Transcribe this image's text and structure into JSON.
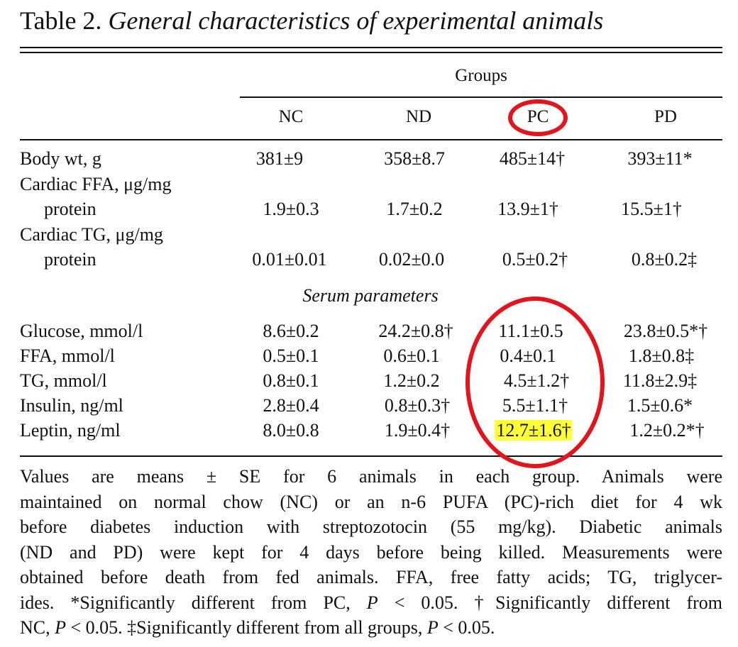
{
  "title": {
    "label": "Table 2.",
    "name": "General characteristics of experimental animals"
  },
  "table": {
    "groups_label": "Groups",
    "columns": [
      "NC",
      "ND",
      "PC",
      "PD"
    ],
    "rows": [
      {
        "label_line1": "Body wt, g",
        "label_line2": "",
        "values": [
          "381±9",
          "358±8.7",
          "485±14†",
          "393±11*"
        ]
      },
      {
        "label_line1": "Cardiac FFA, μg/mg",
        "label_line2": "protein",
        "values": [
          "1.9±0.3",
          "1.7±0.2",
          "13.9±1†",
          "15.5±1†"
        ]
      },
      {
        "label_line1": "Cardiac TG, μg/mg",
        "label_line2": "protein",
        "values": [
          "0.01±0.01",
          "0.02±0.0",
          "0.5±0.2†",
          "0.8±0.2‡"
        ]
      }
    ],
    "section_label": "Serum parameters",
    "serum_rows": [
      {
        "label": "Glucose, mmol/l",
        "values": [
          "8.6±0.2",
          "24.2±0.8†",
          "11.1±0.5",
          "23.8±0.5*†"
        ]
      },
      {
        "label": "FFA, mmol/l",
        "values": [
          "0.5±0.1",
          "0.6±0.1",
          "0.4±0.1",
          "1.8±0.8‡"
        ]
      },
      {
        "label": "TG, mmol/l",
        "values": [
          "0.8±0.1",
          "1.2±0.2",
          "4.5±1.2†",
          "11.8±2.9‡"
        ]
      },
      {
        "label": "Insulin, ng/ml",
        "values": [
          "2.8±0.4",
          "0.8±0.3†",
          "5.5±1.1†",
          "1.5±0.6*"
        ]
      },
      {
        "label": "Leptin, ng/ml",
        "values": [
          "8.0±0.8",
          "1.9±0.4†",
          "12.7±1.6†",
          "1.2±0.2*†"
        ]
      }
    ]
  },
  "note_lines": [
    "Values are means ± SE for 6 animals in each group. Animals were",
    "maintained on normal chow (NC) or an n-6 PUFA (PC)-rich diet for 4 wk",
    "before diabetes induction with streptozotocin (55 mg/kg). Diabetic animals",
    "(ND and PD) were kept for 4 days before being killed. Measurements were",
    "obtained before death from fed animals. FFA, free fatty acids; TG, triglycer-"
  ],
  "note_line6": {
    "a": "ides. *Significantly different from PC, ",
    "p": "P",
    "b": " < 0.05. †Significantly different from"
  },
  "note_line7": {
    "a": "NC, ",
    "p": "P",
    "b": " < 0.05. ‡Significantly different from all groups, ",
    "p2": "P",
    "c": " < 0.05."
  },
  "annotations": {
    "circle_color": "#e3141c",
    "highlight_color": "#ffff33"
  }
}
